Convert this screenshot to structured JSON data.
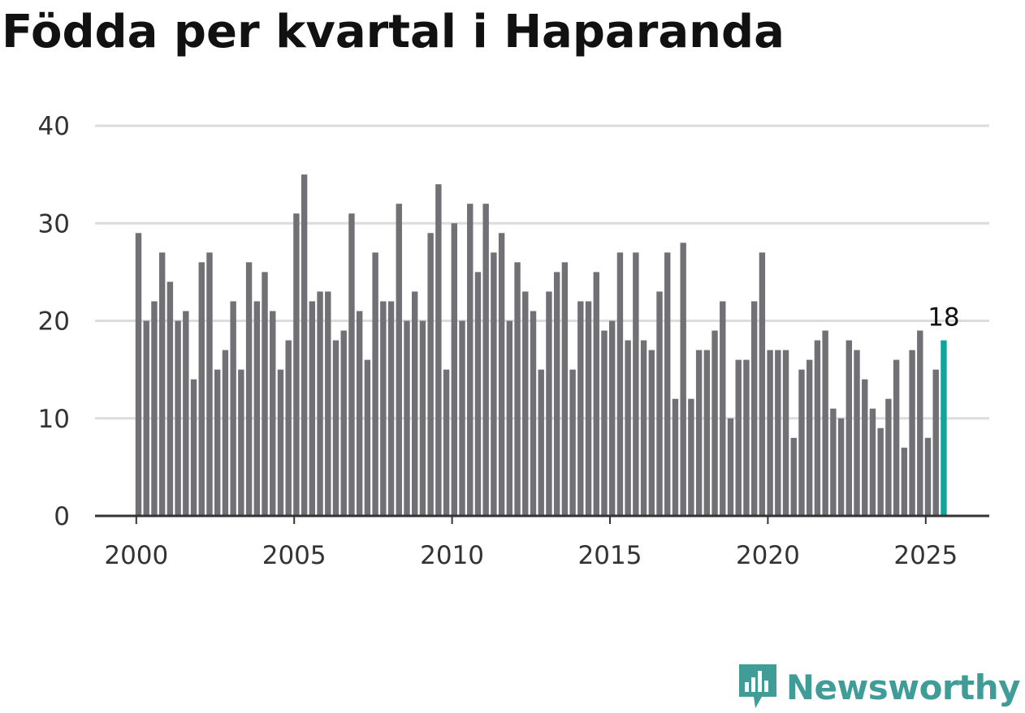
{
  "page": {
    "title": "Födda per kvartal i Haparanda"
  },
  "chart_data": {
    "type": "bar",
    "title": "Födda per kvartal i Haparanda",
    "xlabel": "",
    "ylabel": "",
    "ylim": [
      0,
      40
    ],
    "yticks": [
      "0",
      "10",
      "20",
      "30",
      "40"
    ],
    "xticks": [
      "2000",
      "2005",
      "2010",
      "2015",
      "2020",
      "2025"
    ],
    "x_start_year": 2000,
    "periods_per_year": 4,
    "grid": true,
    "values": [
      29,
      20,
      22,
      27,
      24,
      20,
      21,
      14,
      26,
      27,
      15,
      17,
      22,
      15,
      26,
      22,
      25,
      21,
      15,
      18,
      31,
      35,
      22,
      23,
      23,
      18,
      19,
      31,
      21,
      16,
      27,
      22,
      22,
      32,
      20,
      23,
      20,
      29,
      34,
      15,
      30,
      20,
      32,
      25,
      32,
      27,
      29,
      20,
      26,
      23,
      21,
      15,
      23,
      25,
      26,
      15,
      22,
      22,
      25,
      19,
      20,
      27,
      18,
      27,
      18,
      17,
      23,
      27,
      12,
      28,
      12,
      17,
      17,
      19,
      22,
      10,
      16,
      16,
      22,
      27,
      17,
      17,
      17,
      8,
      15,
      16,
      18,
      19,
      11,
      10,
      18,
      17,
      14,
      11,
      9,
      12,
      16,
      7,
      17,
      19,
      8,
      15,
      18
    ],
    "highlight_index": 102,
    "highlight_label": "18",
    "colors": {
      "bar": "#717075",
      "highlight": "#12a49a",
      "grid": "#dcdcdc",
      "axis": "#333333"
    }
  },
  "brand": {
    "name": "Newsworthy",
    "icon": "newsworthy-logo-icon",
    "color": "#3f9c96"
  }
}
